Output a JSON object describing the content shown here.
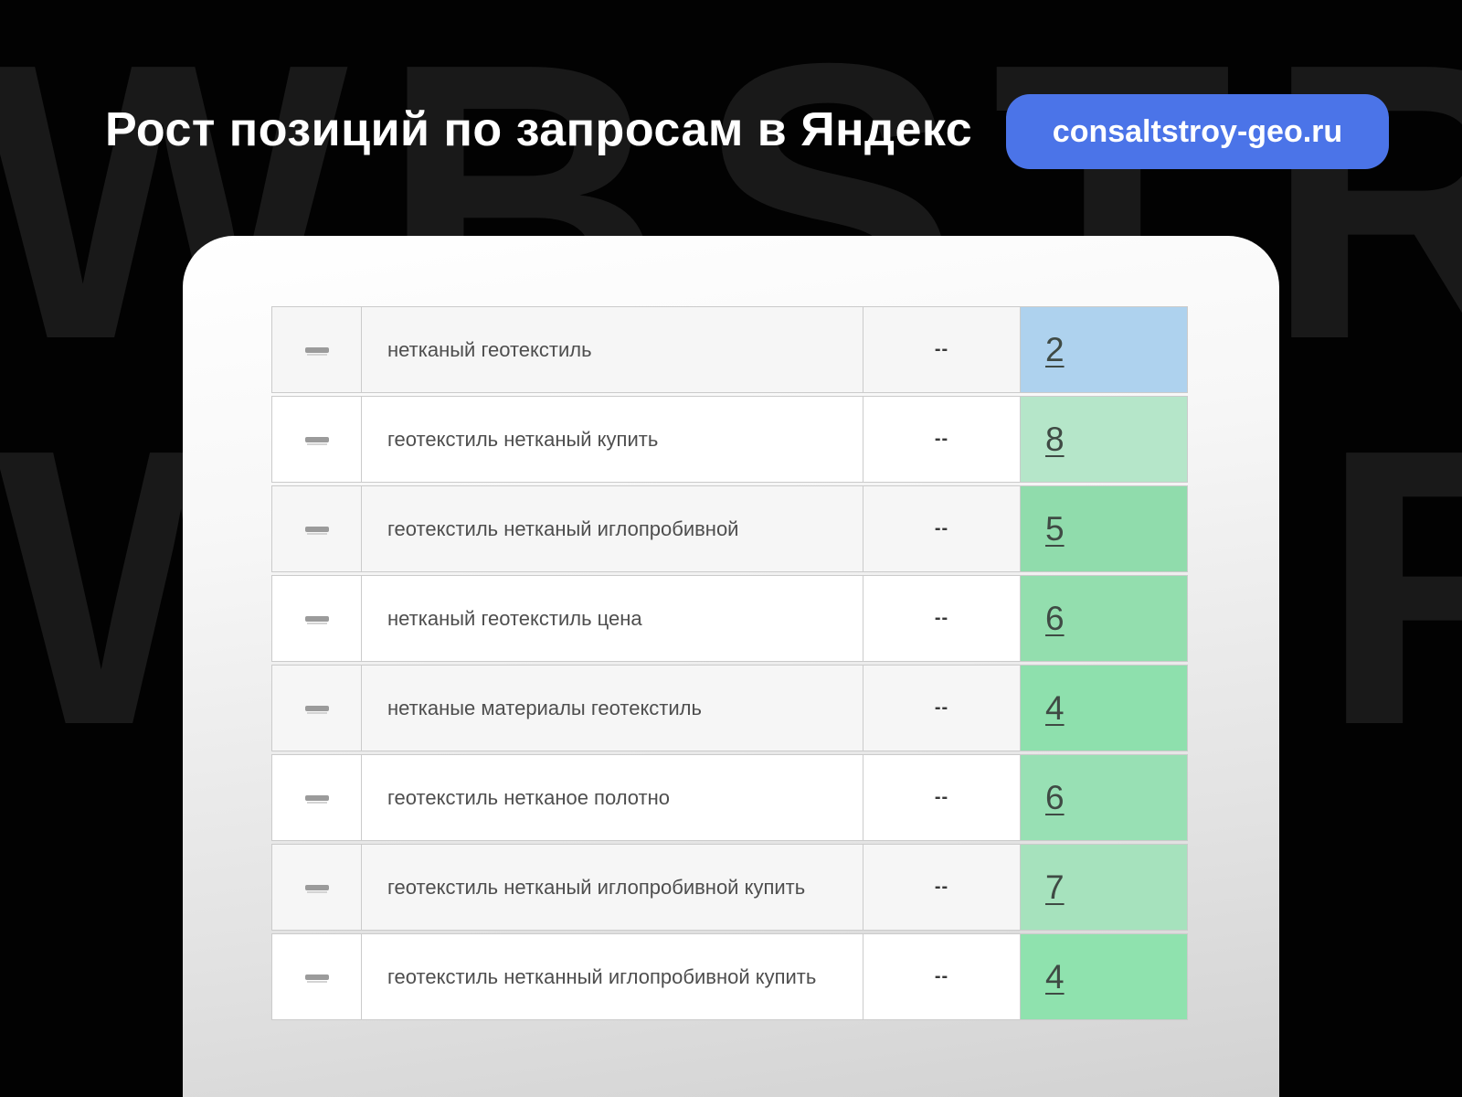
{
  "header": {
    "title": "Рост позиций по запросам в Яндекс",
    "badge": "consaltstroy-geo.ru"
  },
  "watermark": {
    "text": "WBSTR"
  },
  "colors": {
    "badge_blue": "#4b74e8",
    "top_position_blue": "#aed2ee",
    "position_green": "#8fe0ad"
  },
  "table": {
    "rows": [
      {
        "query": "нетканый геотекстиль",
        "dynamics": "--",
        "position": "2",
        "cell_color": "#aed2ee"
      },
      {
        "query": "геотекстиль нетканый купить",
        "dynamics": "--",
        "position": "8",
        "cell_color": "#b5e6c9"
      },
      {
        "query": "геотекстиль нетканый иглопробивной",
        "dynamics": "--",
        "position": "5",
        "cell_color": "#90dcac"
      },
      {
        "query": "нетканый геотекстиль цена",
        "dynamics": "--",
        "position": "6",
        "cell_color": "#93deae"
      },
      {
        "query": "нетканые материалы геотекстиль",
        "dynamics": "--",
        "position": "4",
        "cell_color": "#8ee0ad"
      },
      {
        "query": "геотекстиль нетканое полотно",
        "dynamics": "--",
        "position": "6",
        "cell_color": "#98e0b4"
      },
      {
        "query": "геотекстиль нетканый иглопробивной купить",
        "dynamics": "--",
        "position": "7",
        "cell_color": "#a6e2bd"
      },
      {
        "query": "геотекстиль нетканный иглопробивной купить",
        "dynamics": "--",
        "position": "4",
        "cell_color": "#8fe2ae"
      }
    ]
  }
}
